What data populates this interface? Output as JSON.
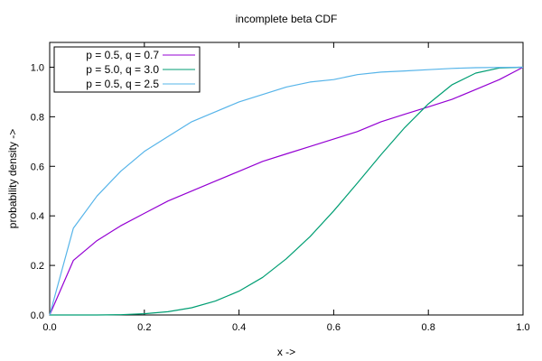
{
  "chart_data": {
    "type": "line",
    "title": "incomplete beta CDF",
    "xlabel": "x ->",
    "ylabel": "probability density ->",
    "xlim": [
      0.0,
      1.0
    ],
    "ylim": [
      0.0,
      1.1
    ],
    "x_ticks": [
      "0.0",
      "0.2",
      "0.4",
      "0.6",
      "0.8",
      "1.0"
    ],
    "y_ticks": [
      "0.0",
      "0.2",
      "0.4",
      "0.6",
      "0.8",
      "1.0"
    ],
    "grid": false,
    "legend_position": "top-left",
    "x": [
      0,
      0.05,
      0.1,
      0.15,
      0.2,
      0.25,
      0.3,
      0.35,
      0.4,
      0.45,
      0.5,
      0.55,
      0.6,
      0.65,
      0.7,
      0.75,
      0.8,
      0.85,
      0.9,
      0.95,
      1.0
    ],
    "series": [
      {
        "name": "p = 0.5, q = 0.7",
        "color": "#9400d3",
        "values": [
          0.0,
          0.22,
          0.3,
          0.36,
          0.41,
          0.46,
          0.5,
          0.54,
          0.58,
          0.62,
          0.65,
          0.68,
          0.71,
          0.74,
          0.78,
          0.81,
          0.84,
          0.87,
          0.91,
          0.95,
          1.0
        ]
      },
      {
        "name": "p = 5.0, q = 3.0",
        "color": "#009e73",
        "values": [
          0.0,
          0.0,
          0.0,
          0.001,
          0.005,
          0.013,
          0.029,
          0.056,
          0.096,
          0.152,
          0.227,
          0.316,
          0.42,
          0.532,
          0.647,
          0.756,
          0.852,
          0.929,
          0.976,
          0.997,
          1.0
        ]
      },
      {
        "name": "p = 0.5, q = 2.5",
        "color": "#56b4e9",
        "values": [
          0.0,
          0.35,
          0.48,
          0.58,
          0.66,
          0.72,
          0.78,
          0.82,
          0.86,
          0.89,
          0.92,
          0.94,
          0.95,
          0.97,
          0.98,
          0.985,
          0.99,
          0.995,
          0.998,
          0.999,
          1.0
        ]
      }
    ]
  }
}
